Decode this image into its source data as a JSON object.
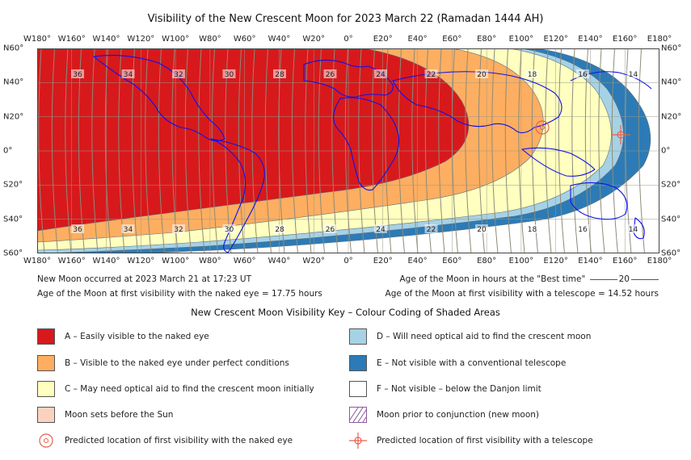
{
  "title": "Visibility of the New Crescent Moon for 2023 March 22 (Ramadan 1444 AH)",
  "longitude_labels": [
    "W180°",
    "W160°",
    "W140°",
    "W120°",
    "W100°",
    "W80°",
    "W60°",
    "W40°",
    "W20°",
    "0°",
    "E20°",
    "E40°",
    "E60°",
    "E80°",
    "E100°",
    "E120°",
    "E140°",
    "E160°",
    "E180°"
  ],
  "latitude_labels": [
    "N60°",
    "N40°",
    "N20°",
    "0°",
    "S20°",
    "S40°",
    "S60°"
  ],
  "age_contours_top": [
    "36",
    "34",
    "32",
    "30",
    "28",
    "26",
    "24",
    "22",
    "20",
    "18",
    "16",
    "14"
  ],
  "age_contours_bottom": [
    "36",
    "34",
    "32",
    "30",
    "28",
    "26",
    "24",
    "22",
    "20",
    "18",
    "16",
    "14"
  ],
  "info": {
    "new_moon": "New Moon occurred at 2023 March 21 at 17:23 UT",
    "naked_eye_age": "Age of the Moon at first visibility with the naked eye = 17.75 hours",
    "best_time_prefix": "Age of the Moon in hours at the \"Best time\"",
    "best_time_sample": "20",
    "telescope_age": "Age of the Moon at first visibility with a telescope = 14.52 hours"
  },
  "key": {
    "title": "New Crescent Moon Visibility Key – Colour Coding of Shaded Areas",
    "items": [
      {
        "label": "A – Easily visible to the naked eye",
        "color": "#d7191c"
      },
      {
        "label": "D – Will need optical aid to find the crescent moon",
        "color": "#a6d2e6"
      },
      {
        "label": "B – Visible to the naked eye under perfect conditions",
        "color": "#fdae61"
      },
      {
        "label": "E – Not visible with a conventional telescope",
        "color": "#2c7bb6"
      },
      {
        "label": "C – May need optical aid to find the crescent moon initially",
        "color": "#ffffbf"
      },
      {
        "label": "F – Not visible – below the Danjon limit",
        "color": "#ffffff"
      },
      {
        "label": "Moon sets before the Sun",
        "color": "#fbd2c0"
      },
      {
        "label": "Moon prior to conjunction (new moon)",
        "color": "hatched-purple"
      },
      {
        "label": "Predicted location of first visibility with the naked eye",
        "icon": "target-circle-icon"
      },
      {
        "label": "Predicted location of first visibility with a telescope",
        "icon": "crosshair-icon"
      }
    ]
  },
  "colors": {
    "zoneA": "#d7191c",
    "zoneB": "#fdae61",
    "zoneC": "#ffffbf",
    "zoneD": "#a6d2e6",
    "zoneE": "#2c7bb6",
    "coastline": "#1010ee",
    "grid": "#9a9a88",
    "marker": "#e8604c"
  }
}
